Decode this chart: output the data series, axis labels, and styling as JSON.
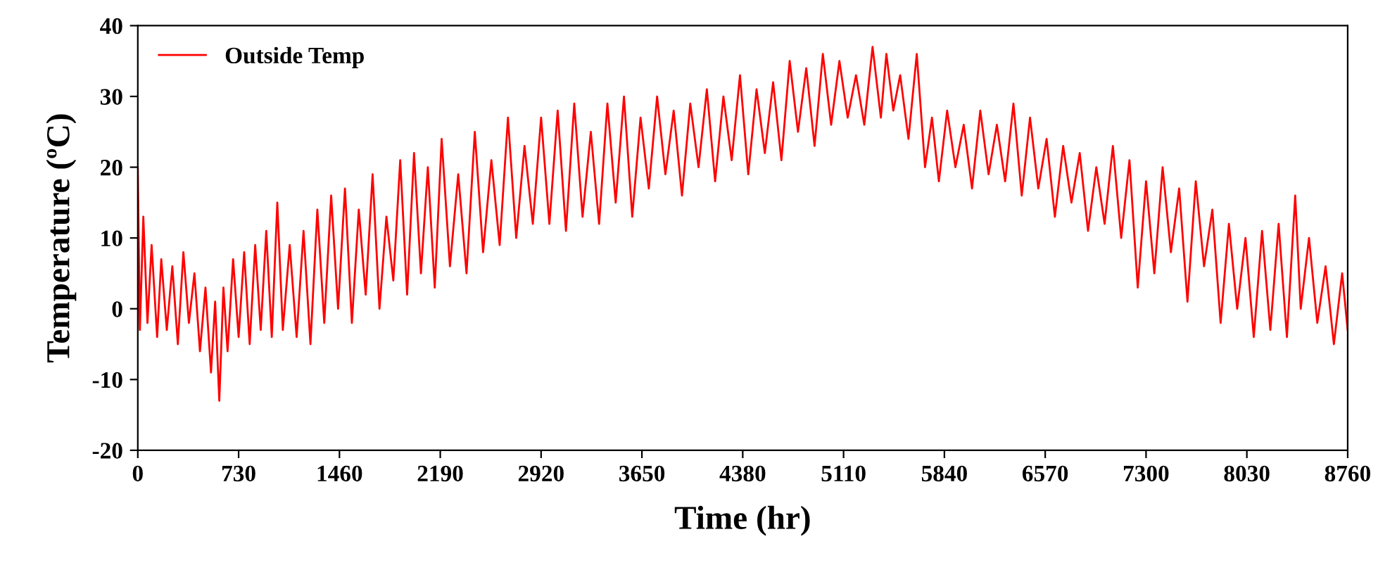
{
  "chart_data": {
    "type": "line",
    "xlabel": "Time (hr)",
    "ylabel": "Temperature (ºC)",
    "xlim": [
      0,
      8760
    ],
    "ylim": [
      -20,
      40
    ],
    "xticks": [
      0,
      730,
      1460,
      2190,
      2920,
      3650,
      4380,
      5110,
      5840,
      6570,
      7300,
      8030,
      8760
    ],
    "yticks": [
      -20,
      -10,
      0,
      10,
      20,
      30,
      40
    ],
    "grid": false,
    "legend": "top left",
    "marker": "none",
    "line_style": "solid",
    "series": [
      {
        "name": "Outside Temp",
        "color": "#ff0000",
        "x": [
          0,
          15,
          40,
          70,
          100,
          140,
          170,
          210,
          250,
          290,
          330,
          370,
          410,
          450,
          490,
          530,
          560,
          590,
          620,
          650,
          690,
          730,
          770,
          810,
          850,
          890,
          930,
          970,
          1010,
          1050,
          1100,
          1150,
          1200,
          1250,
          1300,
          1350,
          1400,
          1450,
          1500,
          1550,
          1600,
          1650,
          1700,
          1750,
          1800,
          1850,
          1900,
          1950,
          2000,
          2050,
          2100,
          2150,
          2200,
          2260,
          2320,
          2380,
          2440,
          2500,
          2560,
          2620,
          2680,
          2740,
          2800,
          2860,
          2920,
          2980,
          3040,
          3100,
          3160,
          3220,
          3280,
          3340,
          3400,
          3460,
          3520,
          3580,
          3640,
          3700,
          3760,
          3820,
          3880,
          3940,
          4000,
          4060,
          4120,
          4180,
          4240,
          4300,
          4360,
          4420,
          4480,
          4540,
          4600,
          4660,
          4720,
          4780,
          4840,
          4900,
          4960,
          5020,
          5080,
          5140,
          5200,
          5260,
          5320,
          5380,
          5420,
          5470,
          5520,
          5580,
          5640,
          5700,
          5750,
          5800,
          5860,
          5920,
          5980,
          6040,
          6100,
          6160,
          6220,
          6280,
          6340,
          6400,
          6460,
          6520,
          6580,
          6640,
          6700,
          6760,
          6820,
          6880,
          6940,
          7000,
          7060,
          7120,
          7180,
          7240,
          7300,
          7360,
          7420,
          7480,
          7540,
          7600,
          7660,
          7720,
          7780,
          7840,
          7900,
          7960,
          8020,
          8080,
          8140,
          8200,
          8260,
          8320,
          8380,
          8420,
          8480,
          8540,
          8600,
          8660,
          8720,
          8760
        ],
        "values": [
          20,
          -3,
          13,
          -2,
          9,
          -4,
          7,
          -3,
          6,
          -5,
          8,
          -2,
          5,
          -6,
          3,
          -9,
          1,
          -13,
          3,
          -6,
          7,
          -4,
          8,
          -5,
          9,
          -3,
          11,
          -4,
          15,
          -3,
          9,
          -4,
          11,
          -5,
          14,
          -2,
          16,
          0,
          17,
          -2,
          14,
          2,
          19,
          0,
          13,
          4,
          21,
          2,
          22,
          5,
          20,
          3,
          24,
          6,
          19,
          5,
          25,
          8,
          21,
          9,
          27,
          10,
          23,
          12,
          27,
          12,
          28,
          11,
          29,
          13,
          25,
          12,
          29,
          15,
          30,
          13,
          27,
          17,
          30,
          19,
          28,
          16,
          29,
          20,
          31,
          18,
          30,
          21,
          33,
          19,
          31,
          22,
          32,
          21,
          35,
          25,
          34,
          23,
          36,
          26,
          35,
          27,
          33,
          26,
          37,
          27,
          36,
          28,
          33,
          24,
          36,
          20,
          27,
          18,
          28,
          20,
          26,
          17,
          28,
          19,
          26,
          18,
          29,
          16,
          27,
          17,
          24,
          13,
          23,
          15,
          22,
          11,
          20,
          12,
          23,
          10,
          21,
          3,
          18,
          5,
          20,
          8,
          17,
          1,
          18,
          6,
          14,
          -2,
          12,
          0,
          10,
          -4,
          11,
          -3,
          12,
          -4,
          16,
          0,
          10,
          -2,
          6,
          -5,
          5,
          -3
        ]
      }
    ]
  }
}
